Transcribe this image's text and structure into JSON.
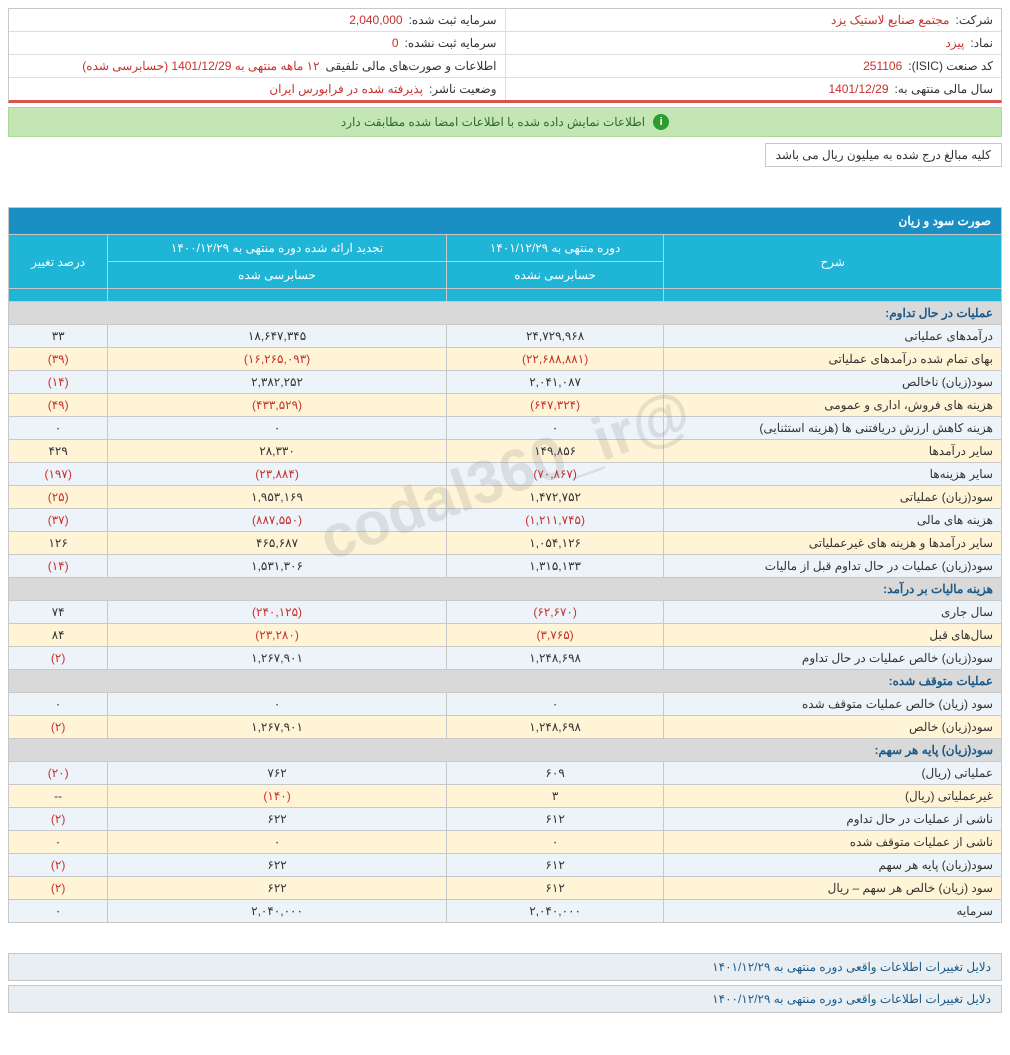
{
  "info": {
    "company_label": "شرکت:",
    "company_value": "مجتمع صنایع لاستیک یزد",
    "capital_reg_label": "سرمایه ثبت شده:",
    "capital_reg_value": "2,040,000",
    "symbol_label": "نماد:",
    "symbol_value": "پیزد",
    "capital_unreg_label": "سرمایه ثبت نشده:",
    "capital_unreg_value": "0",
    "isic_label": "کد صنعت (ISIC):",
    "isic_value": "251106",
    "statements_label": "اطلاعات و صورت‌های مالی تلفیقی",
    "statements_value": "۱۲ ماهه منتهی به 1401/12/29 (حسابرسی شده)",
    "fy_label": "سال مالی منتهی به:",
    "fy_value": "1401/12/29",
    "status_label": "وضعیت ناشر:",
    "status_value": "پذیرفته شده در فرابورس ایران"
  },
  "notice_text": "اطلاعات نمایش داده شده با اطلاعات امضا شده مطابقت دارد",
  "unit_note": "کلیه مبالغ درج شده به میلیون ریال می باشد",
  "watermark": "@codal360_ir",
  "section_title": "صورت سود و زیان",
  "columns": {
    "desc": "شرح",
    "period_current": "دوره منتهی به ۱۴۰۱/۱۲/۲۹",
    "period_prev": "تجدید ارائه شده دوره منتهی به ۱۴۰۰/۱۲/۲۹",
    "change": "درصد تغییر",
    "sub_unaudited": "حسابرسی نشده",
    "sub_audited": "حسابرسی شده"
  },
  "rows": [
    {
      "type": "head",
      "desc": "عملیات در حال تداوم:"
    },
    {
      "type": "data",
      "desc": "درآمدهای عملیاتی",
      "cur": "۲۴,۷۲۹,۹۶۸",
      "prev": "۱۸,۶۴۷,۳۴۵",
      "chg": "۳۳",
      "neg_cur": false,
      "neg_prev": false,
      "neg_chg": false
    },
    {
      "type": "data",
      "desc": "بهای تمام شده درآمدهای عملیاتی",
      "cur": "(۲۲,۶۸۸,۸۸۱)",
      "prev": "(۱۶,۲۶۵,۰۹۳)",
      "chg": "(۳۹)",
      "neg_cur": true,
      "neg_prev": true,
      "neg_chg": true
    },
    {
      "type": "data",
      "desc": "سود(زیان) ناخالص",
      "cur": "۲,۰۴۱,۰۸۷",
      "prev": "۲,۳۸۲,۲۵۲",
      "chg": "(۱۴)",
      "neg_cur": false,
      "neg_prev": false,
      "neg_chg": true
    },
    {
      "type": "data",
      "desc": "هزینه های فروش، اداری و عمومی",
      "cur": "(۶۴۷,۳۲۴)",
      "prev": "(۴۳۳,۵۲۹)",
      "chg": "(۴۹)",
      "neg_cur": true,
      "neg_prev": true,
      "neg_chg": true
    },
    {
      "type": "data",
      "desc": "هزینه کاهش ارزش دریافتنی ها (هزینه استثنایی)",
      "cur": "۰",
      "prev": "۰",
      "chg": "۰",
      "neg_cur": false,
      "neg_prev": false,
      "neg_chg": false
    },
    {
      "type": "data",
      "desc": "سایر درآمدها",
      "cur": "۱۴۹,۸۵۶",
      "prev": "۲۸,۳۳۰",
      "chg": "۴۲۹",
      "neg_cur": false,
      "neg_prev": false,
      "neg_chg": false
    },
    {
      "type": "data",
      "desc": "سایر هزینه‌ها",
      "cur": "(۷۰,۸۶۷)",
      "prev": "(۲۳,۸۸۴)",
      "chg": "(۱۹۷)",
      "neg_cur": true,
      "neg_prev": true,
      "neg_chg": true
    },
    {
      "type": "data",
      "desc": "سود(زیان) عملیاتی",
      "cur": "۱,۴۷۲,۷۵۲",
      "prev": "۱,۹۵۳,۱۶۹",
      "chg": "(۲۵)",
      "neg_cur": false,
      "neg_prev": false,
      "neg_chg": true
    },
    {
      "type": "data",
      "desc": "هزینه های مالی",
      "cur": "(۱,۲۱۱,۷۴۵)",
      "prev": "(۸۸۷,۵۵۰)",
      "chg": "(۳۷)",
      "neg_cur": true,
      "neg_prev": true,
      "neg_chg": true
    },
    {
      "type": "data",
      "desc": "سایر درآمدها و هزینه های غیرعملیاتی",
      "cur": "۱,۰۵۴,۱۲۶",
      "prev": "۴۶۵,۶۸۷",
      "chg": "۱۲۶",
      "neg_cur": false,
      "neg_prev": false,
      "neg_chg": false
    },
    {
      "type": "data",
      "desc": "سود(زیان) عملیات در حال تداوم قبل از مالیات",
      "cur": "۱,۳۱۵,۱۳۳",
      "prev": "۱,۵۳۱,۳۰۶",
      "chg": "(۱۴)",
      "neg_cur": false,
      "neg_prev": false,
      "neg_chg": true
    },
    {
      "type": "head",
      "desc": "هزینه مالیات بر درآمد:"
    },
    {
      "type": "data",
      "desc": "سال جاری",
      "cur": "(۶۲,۶۷۰)",
      "prev": "(۲۴۰,۱۲۵)",
      "chg": "۷۴",
      "neg_cur": true,
      "neg_prev": true,
      "neg_chg": false
    },
    {
      "type": "data",
      "desc": "سال‌های قبل",
      "cur": "(۳,۷۶۵)",
      "prev": "(۲۳,۲۸۰)",
      "chg": "۸۴",
      "neg_cur": true,
      "neg_prev": true,
      "neg_chg": false
    },
    {
      "type": "data",
      "desc": "سود(زیان) خالص عملیات در حال تداوم",
      "cur": "۱,۲۴۸,۶۹۸",
      "prev": "۱,۲۶۷,۹۰۱",
      "chg": "(۲)",
      "neg_cur": false,
      "neg_prev": false,
      "neg_chg": true
    },
    {
      "type": "head",
      "desc": "عملیات متوقف شده:"
    },
    {
      "type": "data",
      "desc": "سود (زیان) خالص عملیات متوقف شده",
      "cur": "۰",
      "prev": "۰",
      "chg": "۰",
      "neg_cur": false,
      "neg_prev": false,
      "neg_chg": false
    },
    {
      "type": "data",
      "desc": "سود(زیان) خالص",
      "cur": "۱,۲۴۸,۶۹۸",
      "prev": "۱,۲۶۷,۹۰۱",
      "chg": "(۲)",
      "neg_cur": false,
      "neg_prev": false,
      "neg_chg": true
    },
    {
      "type": "head",
      "desc": "سود(زیان) پایه هر سهم:"
    },
    {
      "type": "data",
      "desc": "عملیاتی (ریال)",
      "cur": "۶۰۹",
      "prev": "۷۶۲",
      "chg": "(۲۰)",
      "neg_cur": false,
      "neg_prev": false,
      "neg_chg": true
    },
    {
      "type": "data",
      "desc": "غیرعملیاتی (ریال)",
      "cur": "۳",
      "prev": "(۱۴۰)",
      "chg": "--",
      "neg_cur": false,
      "neg_prev": true,
      "neg_chg": false
    },
    {
      "type": "data",
      "desc": "ناشی از عملیات در حال تداوم",
      "cur": "۶۱۲",
      "prev": "۶۲۲",
      "chg": "(۲)",
      "neg_cur": false,
      "neg_prev": false,
      "neg_chg": true
    },
    {
      "type": "data",
      "desc": "ناشی از عملیات متوقف شده",
      "cur": "۰",
      "prev": "۰",
      "chg": "۰",
      "neg_cur": false,
      "neg_prev": false,
      "neg_chg": false
    },
    {
      "type": "data",
      "desc": "سود(زیان) پایه هر سهم",
      "cur": "۶۱۲",
      "prev": "۶۲۲",
      "chg": "(۲)",
      "neg_cur": false,
      "neg_prev": false,
      "neg_chg": true
    },
    {
      "type": "data",
      "desc": "سود (زیان) خالص هر سهم – ریال",
      "cur": "۶۱۲",
      "prev": "۶۲۲",
      "chg": "(۲)",
      "neg_cur": false,
      "neg_prev": false,
      "neg_chg": true
    },
    {
      "type": "data",
      "desc": "سرمایه",
      "cur": "۲,۰۴۰,۰۰۰",
      "prev": "۲,۰۴۰,۰۰۰",
      "chg": "۰",
      "neg_cur": false,
      "neg_prev": false,
      "neg_chg": false
    }
  ],
  "footer": {
    "bar1": "دلایل تغییرات اطلاعات واقعی دوره منتهی به ۱۴۰۱/۱۲/۲۹",
    "bar2": "دلایل تغییرات اطلاعات واقعی دوره منتهی به ۱۴۰۰/۱۲/۲۹"
  },
  "style": {
    "section_bg": "#1a8fc4",
    "th_bg": "#1fb5d6",
    "row_even_bg": "#ecf3f9",
    "row_odd_bg": "#fff5d6",
    "row_head_bg": "#d9d9d9",
    "neg_color": "#c9302c",
    "border_color": "#c8c8c8",
    "notice_bg": "#c3e6b4"
  }
}
